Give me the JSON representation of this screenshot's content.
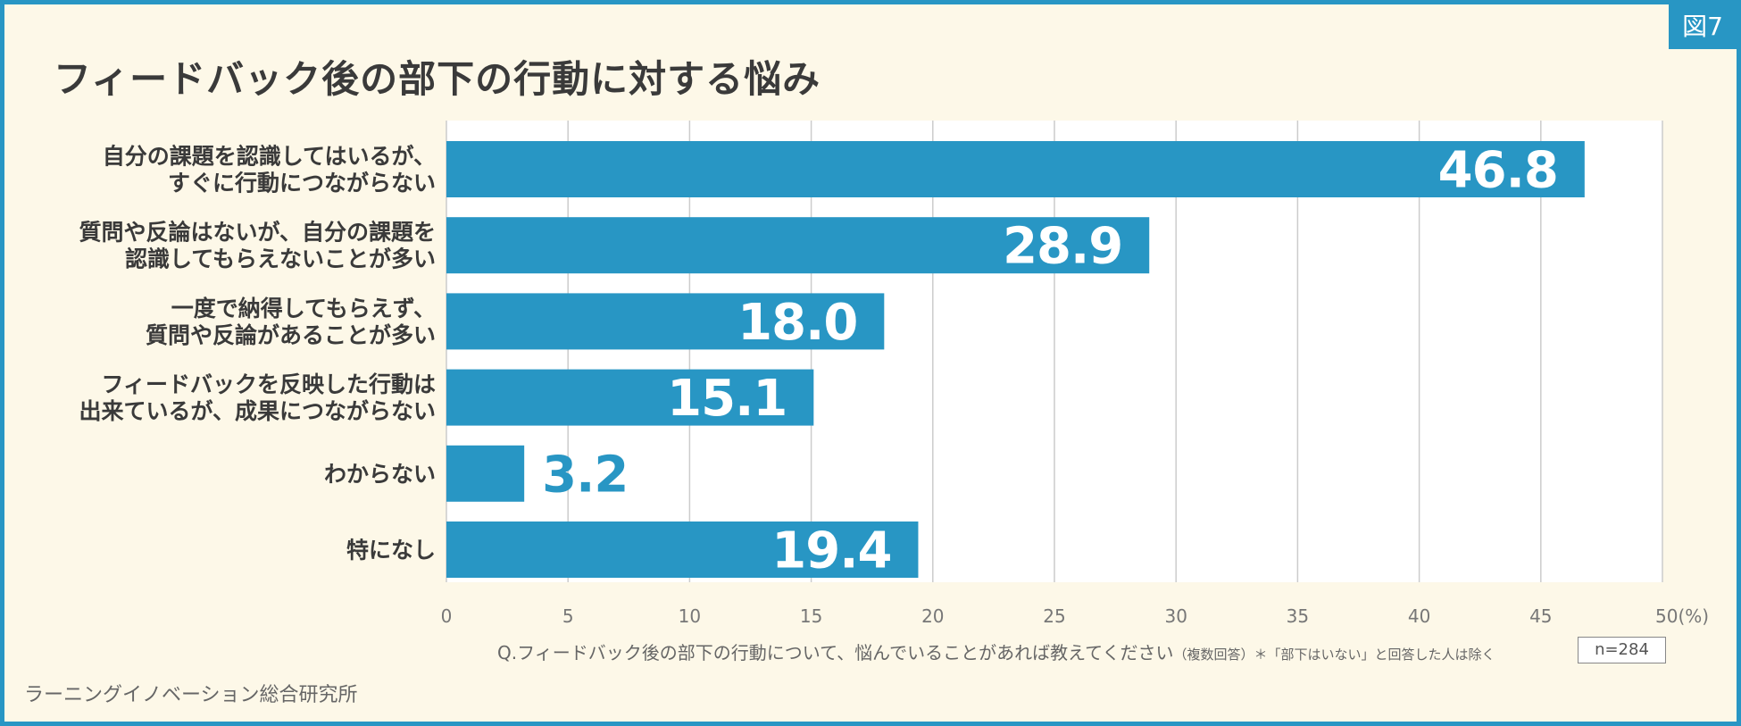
{
  "figure_label": "図7",
  "title": "フィードバック後の部下の行動に対する悩み",
  "colors": {
    "bar": "#2896c4",
    "frame": "#2896c4",
    "background": "#fdf8e8",
    "plot_bg": "#ffffff",
    "grid": "#cccccc"
  },
  "chart_data": {
    "type": "bar",
    "orientation": "horizontal",
    "title": "フィードバック後の部下の行動に対する悩み",
    "categories": [
      [
        "自分の課題を認識してはいるが、",
        "すぐに行動につながらない"
      ],
      [
        "質問や反論はないが、自分の課題を",
        "認識してもらえないことが多い"
      ],
      [
        "一度で納得してもらえず、",
        "質問や反論があることが多い"
      ],
      [
        "フィードバックを反映した行動は",
        "出来ているが、成果につながらない"
      ],
      [
        "わからない"
      ],
      [
        "特になし"
      ]
    ],
    "values": [
      46.8,
      28.9,
      18.0,
      15.1,
      3.2,
      19.4
    ],
    "value_labels": [
      "46.8",
      "28.9",
      "18.0",
      "15.1",
      "3.2",
      "19.4"
    ],
    "xlim": [
      0,
      50
    ],
    "xticks": [
      "0",
      "5",
      "10",
      "15",
      "20",
      "25",
      "30",
      "35",
      "40",
      "45",
      "50(%)"
    ],
    "grid": true
  },
  "question_text": "Q.フィードバック後の部下の行動について、悩んでいることがあれば教えてください",
  "question_note": "（複数回答）＊「部下はいない」と回答した人は除く",
  "sample_size": "n=284",
  "source": "ラーニングイノベーション総合研究所"
}
